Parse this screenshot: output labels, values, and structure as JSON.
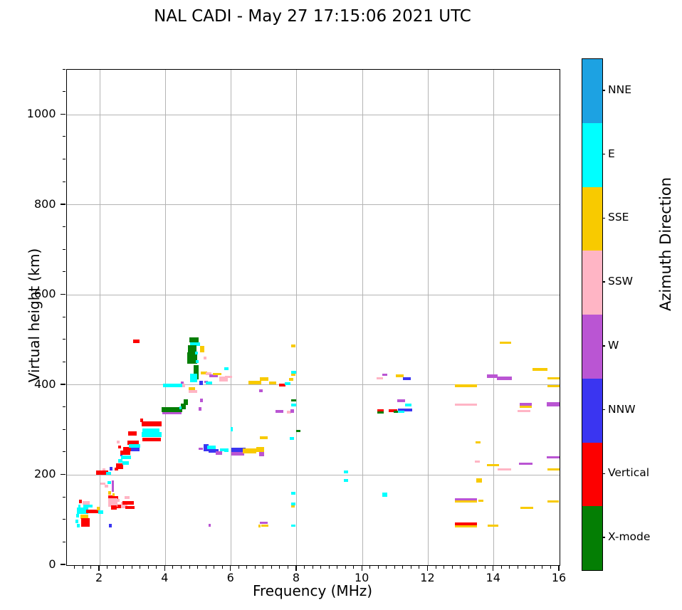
{
  "title": "NAL CADI - May 27 17:15:06 2021 UTC",
  "axes": {
    "xlabel": "Frequency (MHz)",
    "ylabel": "Virtual height (km)",
    "xlim": [
      1,
      16
    ],
    "ylim": [
      0,
      1100
    ],
    "xticks": [
      2,
      4,
      6,
      8,
      10,
      12,
      14,
      16
    ],
    "yticks": [
      0,
      200,
      400,
      600,
      800,
      1000
    ],
    "x_minor_step": 0.25,
    "y_minor_step": 50,
    "grid": true
  },
  "colorbar": {
    "label": "Azimuth Direction",
    "entries": [
      {
        "label": "NNE",
        "color": "#1da2e2"
      },
      {
        "label": "E",
        "color": "#00ffff"
      },
      {
        "label": "SSE",
        "color": "#f8ca00"
      },
      {
        "label": "SSW",
        "color": "#ffb5c5"
      },
      {
        "label": "W",
        "color": "#ba55d3"
      },
      {
        "label": "NNW",
        "color": "#3a35f1"
      },
      {
        "label": "Vertical",
        "color": "#fd0000"
      },
      {
        "label": "X-mode",
        "color": "#047e04"
      }
    ]
  },
  "chart_data": {
    "type": "scatter",
    "title": "NAL CADI - May 27 17:15:06 2021 UTC",
    "xlabel": "Frequency (MHz)",
    "ylabel": "Virtual height (km)",
    "xlim": [
      1,
      16
    ],
    "ylim": [
      0,
      1100
    ],
    "legend_position": "right-colorbar",
    "point_format": [
      "freq_MHz",
      "height_km",
      "azimuth_class",
      "width_MHz",
      "height_span_km"
    ],
    "points": [
      [
        1.31,
        97,
        "E",
        0.08,
        8
      ],
      [
        1.33,
        110,
        "E",
        0.08,
        8
      ],
      [
        1.36,
        121,
        "E",
        0.08,
        8
      ],
      [
        1.34,
        88,
        "E",
        0.08,
        8
      ],
      [
        1.38,
        131,
        "E",
        0.08,
        8
      ],
      [
        1.41,
        142,
        "Vertical",
        0.08,
        8
      ],
      [
        1.58,
        138,
        "SSW",
        0.22,
        7
      ],
      [
        1.47,
        121,
        "E",
        0.34,
        14
      ],
      [
        1.53,
        108,
        "SSE",
        0.24,
        9
      ],
      [
        1.56,
        95,
        "Vertical",
        0.26,
        18
      ],
      [
        1.78,
        119,
        "Vertical",
        0.4,
        8
      ],
      [
        1.95,
        125,
        "SSE",
        0.1,
        8
      ],
      [
        2.03,
        118,
        "E",
        0.14,
        8
      ],
      [
        1.63,
        131,
        "E",
        0.28,
        6
      ],
      [
        2.32,
        88,
        "NNW",
        0.08,
        8
      ],
      [
        2.38,
        152,
        "Vertical",
        0.1,
        7
      ],
      [
        2.47,
        149,
        "Vertical",
        0.18,
        10
      ],
      [
        2.42,
        157,
        "SSE",
        0.08,
        6
      ],
      [
        2.55,
        144,
        "SSW",
        0.1,
        6
      ],
      [
        2.56,
        131,
        "Vertical",
        0.22,
        8
      ],
      [
        2.1,
        181,
        "SSW",
        0.16,
        6
      ],
      [
        2.2,
        176,
        "SSW",
        0.1,
        6
      ],
      [
        2.39,
        175,
        "W",
        0.06,
        26
      ],
      [
        2.29,
        183,
        "E",
        0.12,
        7
      ],
      [
        2.3,
        161,
        "SSE",
        0.09,
        8
      ],
      [
        2.31,
        151,
        "Vertical",
        0.12,
        8
      ],
      [
        2.4,
        139,
        "SSW",
        0.28,
        20
      ],
      [
        2.43,
        128,
        "Vertical",
        0.16,
        8
      ],
      [
        2.75,
        133,
        "SSW",
        0.2,
        14
      ],
      [
        2.83,
        150,
        "SSW",
        0.14,
        7
      ],
      [
        2.86,
        139,
        "Vertical",
        0.34,
        8
      ],
      [
        2.92,
        128,
        "Vertical",
        0.3,
        7
      ],
      [
        2.07,
        205,
        "Vertical",
        0.38,
        9
      ],
      [
        2.27,
        204,
        "E",
        0.16,
        7
      ],
      [
        2.12,
        213,
        "SSW",
        0.08,
        5
      ],
      [
        2.34,
        214,
        "NNW",
        0.09,
        9
      ],
      [
        2.5,
        213,
        "Vertical",
        0.1,
        7
      ],
      [
        2.56,
        273,
        "SSW",
        0.09,
        7
      ],
      [
        2.61,
        262,
        "Vertical",
        0.08,
        7
      ],
      [
        2.62,
        231,
        "E",
        0.14,
        8
      ],
      [
        2.6,
        220,
        "Vertical",
        0.22,
        13
      ],
      [
        2.66,
        245,
        "NNW",
        0.08,
        7
      ],
      [
        2.79,
        227,
        "E",
        0.18,
        8
      ],
      [
        2.78,
        250,
        "Vertical",
        0.3,
        9
      ],
      [
        2.8,
        240,
        "E",
        0.3,
        8
      ],
      [
        2.88,
        258,
        "Vertical",
        0.34,
        9
      ],
      [
        3.02,
        272,
        "Vertical",
        0.36,
        9
      ],
      [
        3.06,
        264,
        "E",
        0.36,
        8
      ],
      [
        3.08,
        257,
        "NNW",
        0.26,
        7
      ],
      [
        3.0,
        292,
        "Vertical",
        0.26,
        9
      ],
      [
        3.28,
        322,
        "Vertical",
        0.09,
        8
      ],
      [
        3.58,
        313,
        "Vertical",
        0.6,
        11
      ],
      [
        3.56,
        299,
        "E",
        0.52,
        8
      ],
      [
        3.58,
        290,
        "E",
        0.6,
        11
      ],
      [
        3.58,
        279,
        "Vertical",
        0.55,
        9
      ],
      [
        4.2,
        346,
        "X-mode",
        0.62,
        11
      ],
      [
        4.2,
        338,
        "W",
        0.58,
        4
      ],
      [
        4.54,
        352,
        "X-mode",
        0.14,
        12
      ],
      [
        4.63,
        362,
        "X-mode",
        0.13,
        14
      ],
      [
        4.45,
        349,
        "E",
        0.06,
        6
      ],
      [
        5.09,
        366,
        "W",
        0.09,
        7
      ],
      [
        5.05,
        347,
        "W",
        0.09,
        7
      ],
      [
        4.87,
        500,
        "X-mode",
        0.3,
        11
      ],
      [
        4.9,
        491,
        "E",
        0.3,
        8
      ],
      [
        4.82,
        481,
        "X-mode",
        0.26,
        16
      ],
      [
        5.12,
        480,
        "SSE",
        0.14,
        14
      ],
      [
        4.82,
        460,
        "X-mode",
        0.3,
        26
      ],
      [
        4.95,
        471,
        "E",
        0.08,
        7
      ],
      [
        4.97,
        452,
        "E",
        0.08,
        7
      ],
      [
        5.2,
        460,
        "SSW",
        0.09,
        7
      ],
      [
        4.93,
        428,
        "X-mode",
        0.16,
        32
      ],
      [
        4.86,
        416,
        "E",
        0.2,
        19
      ],
      [
        5.17,
        427,
        "SSE",
        0.2,
        7
      ],
      [
        5.32,
        425,
        "SSW",
        0.18,
        6
      ],
      [
        5.46,
        421,
        "W",
        0.26,
        6
      ],
      [
        5.58,
        424,
        "SSE",
        0.26,
        5
      ],
      [
        5.76,
        414,
        "SSW",
        0.26,
        11
      ],
      [
        5.92,
        418,
        "SSW",
        0.2,
        6
      ],
      [
        5.86,
        436,
        "E",
        0.13,
        6
      ],
      [
        5.08,
        405,
        "NNW",
        0.11,
        10
      ],
      [
        5.24,
        407,
        "W",
        0.11,
        6
      ],
      [
        5.32,
        404,
        "E",
        0.2,
        6
      ],
      [
        4.52,
        405,
        "W",
        0.09,
        7
      ],
      [
        4.22,
        399,
        "E",
        0.58,
        7
      ],
      [
        4.56,
        399,
        "SSW",
        0.09,
        7
      ],
      [
        4.8,
        392,
        "SSE",
        0.2,
        7
      ],
      [
        4.83,
        386,
        "SSW",
        0.26,
        6
      ],
      [
        3.12,
        497,
        "Vertical",
        0.2,
        8
      ],
      [
        5.08,
        258,
        "W",
        0.14,
        5
      ],
      [
        5.24,
        261,
        "NNW",
        0.16,
        15
      ],
      [
        5.4,
        262,
        "E",
        0.26,
        8
      ],
      [
        5.47,
        254,
        "NNW",
        0.3,
        8
      ],
      [
        5.62,
        249,
        "W",
        0.2,
        7
      ],
      [
        5.72,
        256,
        "E",
        0.12,
        7
      ],
      [
        5.86,
        255,
        "E",
        0.13,
        9
      ],
      [
        6.04,
        257,
        "Vertical",
        0.06,
        6
      ],
      [
        6.01,
        302,
        "E",
        0.07,
        9
      ],
      [
        6.22,
        256,
        "NNW",
        0.42,
        8
      ],
      [
        6.2,
        248,
        "W",
        0.4,
        8
      ],
      [
        6.56,
        253,
        "SSE",
        0.4,
        11
      ],
      [
        6.88,
        257,
        "SSE",
        0.24,
        10
      ],
      [
        6.93,
        246,
        "W",
        0.16,
        10
      ],
      [
        7.0,
        283,
        "SSE",
        0.24,
        5
      ],
      [
        7.86,
        281,
        "E",
        0.13,
        6
      ],
      [
        8.05,
        298,
        "X-mode",
        0.13,
        5
      ],
      [
        6.72,
        406,
        "SSE",
        0.38,
        8
      ],
      [
        7.0,
        413,
        "SSE",
        0.26,
        7
      ],
      [
        7.27,
        405,
        "SSE",
        0.22,
        7
      ],
      [
        6.9,
        387,
        "W",
        0.11,
        6
      ],
      [
        7.56,
        400,
        "Vertical",
        0.18,
        6
      ],
      [
        7.72,
        403,
        "E",
        0.16,
        6
      ],
      [
        7.82,
        412,
        "SSE",
        0.13,
        6
      ],
      [
        7.9,
        428,
        "E",
        0.16,
        6
      ],
      [
        7.89,
        423,
        "SSE",
        0.13,
        5
      ],
      [
        7.9,
        487,
        "SSE",
        0.13,
        7
      ],
      [
        7.9,
        366,
        "X-mode",
        0.16,
        6
      ],
      [
        7.9,
        355,
        "E",
        0.16,
        6
      ],
      [
        7.47,
        341,
        "W",
        0.22,
        6
      ],
      [
        7.76,
        340,
        "SSW",
        0.13,
        6
      ],
      [
        7.87,
        342,
        "W",
        0.11,
        9
      ],
      [
        7.9,
        160,
        "E",
        0.13,
        6
      ],
      [
        7.9,
        136,
        "E",
        0.13,
        5
      ],
      [
        7.88,
        130,
        "SSE",
        0.11,
        5
      ],
      [
        7.9,
        88,
        "E",
        0.13,
        5
      ],
      [
        7.0,
        94,
        "W",
        0.24,
        6
      ],
      [
        7.02,
        88,
        "SSE",
        0.22,
        5
      ],
      [
        6.87,
        87,
        "SSE",
        0.07,
        5
      ],
      [
        5.35,
        88,
        "W",
        0.07,
        6
      ],
      [
        9.5,
        207,
        "E",
        0.14,
        5
      ],
      [
        9.5,
        188,
        "E",
        0.14,
        5
      ],
      [
        10.68,
        157,
        "E",
        0.16,
        9
      ],
      [
        10.68,
        423,
        "W",
        0.16,
        5
      ],
      [
        10.53,
        415,
        "SSW",
        0.18,
        5
      ],
      [
        11.14,
        420,
        "SSE",
        0.24,
        6
      ],
      [
        11.36,
        414,
        "NNW",
        0.24,
        7
      ],
      [
        11.17,
        365,
        "W",
        0.24,
        6
      ],
      [
        11.39,
        356,
        "E",
        0.2,
        7
      ],
      [
        11.3,
        345,
        "NNW",
        0.44,
        6
      ],
      [
        11.16,
        341,
        "E",
        0.24,
        5
      ],
      [
        10.93,
        343,
        "Vertical",
        0.26,
        5
      ],
      [
        11.02,
        341,
        "X-mode",
        0.14,
        5
      ],
      [
        10.55,
        344,
        "Vertical",
        0.18,
        5
      ],
      [
        10.55,
        339,
        "X-mode",
        0.18,
        5
      ],
      [
        13.15,
        398,
        "SSE",
        0.68,
        6
      ],
      [
        13.15,
        357,
        "SSW",
        0.66,
        5
      ],
      [
        13.95,
        420,
        "W",
        0.34,
        8
      ],
      [
        14.32,
        415,
        "W",
        0.44,
        7
      ],
      [
        14.35,
        494,
        "SSE",
        0.36,
        6
      ],
      [
        15.4,
        435,
        "SSE",
        0.46,
        6
      ],
      [
        15.82,
        415,
        "SSE",
        0.38,
        6
      ],
      [
        15.82,
        397,
        "SSE",
        0.38,
        5
      ],
      [
        14.97,
        357,
        "W",
        0.36,
        8
      ],
      [
        14.97,
        351,
        "SSE",
        0.36,
        5
      ],
      [
        14.92,
        342,
        "SSW",
        0.4,
        3
      ],
      [
        15.82,
        357,
        "W",
        0.4,
        9
      ],
      [
        13.52,
        273,
        "SSE",
        0.16,
        5
      ],
      [
        15.8,
        240,
        "W",
        0.4,
        3
      ],
      [
        13.5,
        230,
        "SSW",
        0.14,
        5
      ],
      [
        13.97,
        222,
        "SSE",
        0.36,
        6
      ],
      [
        14.97,
        225,
        "W",
        0.4,
        5
      ],
      [
        14.32,
        213,
        "SSW",
        0.4,
        5
      ],
      [
        15.82,
        212,
        "SSE",
        0.36,
        5
      ],
      [
        13.55,
        188,
        "SSE",
        0.18,
        10
      ],
      [
        13.15,
        146,
        "W",
        0.66,
        4
      ],
      [
        13.15,
        142,
        "SSE",
        0.66,
        4
      ],
      [
        13.6,
        143,
        "SSE",
        0.15,
        4
      ],
      [
        15.8,
        142,
        "SSE",
        0.34,
        4
      ],
      [
        15.0,
        127,
        "SSE",
        0.4,
        4
      ],
      [
        13.15,
        92,
        "Vertical",
        0.66,
        7
      ],
      [
        13.15,
        86,
        "SSE",
        0.66,
        3
      ],
      [
        13.97,
        88,
        "SSE",
        0.34,
        4
      ]
    ]
  }
}
